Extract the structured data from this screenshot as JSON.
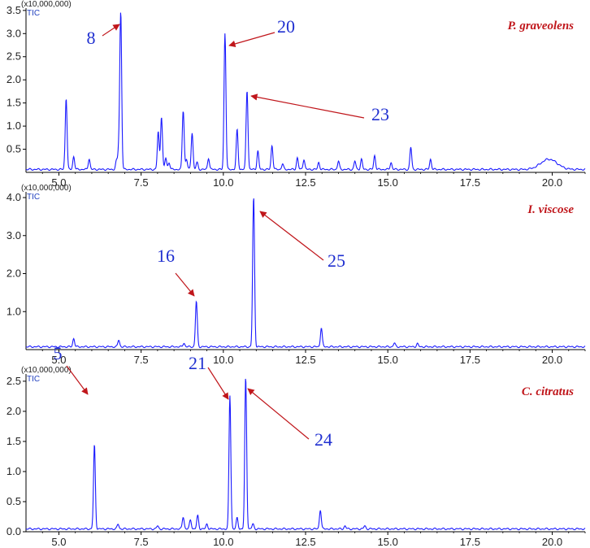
{
  "colors": {
    "trace": "#1a1aff",
    "arrow": "#c0161b",
    "peak_label": "#1f2fd0",
    "title": "#c0161b",
    "axis": "#000000"
  },
  "chart_data": [
    {
      "type": "line",
      "title": "P. graveolens",
      "scale_label": "(x10,000,000)",
      "signal_label": "TIC",
      "xlim": [
        4.0,
        21.0
      ],
      "ylim": [
        0,
        3.55
      ],
      "x_ticks": [
        "5.0",
        "7.5",
        "10.0",
        "12.5",
        "15.0",
        "17.5",
        "20.0"
      ],
      "y_ticks": [
        "0.5",
        "1.0",
        "1.5",
        "2.0",
        "2.5",
        "3.0",
        "3.5"
      ],
      "peaks": [
        {
          "rt": 5.22,
          "h": 1.55
        },
        {
          "rt": 5.45,
          "h": 0.28
        },
        {
          "rt": 5.92,
          "h": 0.23
        },
        {
          "rt": 6.75,
          "h": 0.18
        },
        {
          "rt": 6.82,
          "h": 0.42
        },
        {
          "rt": 6.88,
          "h": 3.38
        },
        {
          "rt": 8.02,
          "h": 0.82
        },
        {
          "rt": 8.12,
          "h": 1.15
        },
        {
          "rt": 8.25,
          "h": 0.25
        },
        {
          "rt": 8.35,
          "h": 0.15
        },
        {
          "rt": 8.78,
          "h": 1.28
        },
        {
          "rt": 8.88,
          "h": 0.22
        },
        {
          "rt": 9.05,
          "h": 0.8
        },
        {
          "rt": 9.2,
          "h": 0.15
        },
        {
          "rt": 9.55,
          "h": 0.25
        },
        {
          "rt": 10.05,
          "h": 2.95
        },
        {
          "rt": 10.42,
          "h": 0.86
        },
        {
          "rt": 10.72,
          "h": 1.72
        },
        {
          "rt": 11.05,
          "h": 0.4
        },
        {
          "rt": 11.48,
          "h": 0.52
        },
        {
          "rt": 11.8,
          "h": 0.12
        },
        {
          "rt": 12.25,
          "h": 0.25
        },
        {
          "rt": 12.45,
          "h": 0.22
        },
        {
          "rt": 12.9,
          "h": 0.15
        },
        {
          "rt": 13.5,
          "h": 0.18
        },
        {
          "rt": 14.0,
          "h": 0.18
        },
        {
          "rt": 14.2,
          "h": 0.22
        },
        {
          "rt": 14.6,
          "h": 0.3
        },
        {
          "rt": 15.1,
          "h": 0.15
        },
        {
          "rt": 15.7,
          "h": 0.48
        },
        {
          "rt": 16.3,
          "h": 0.22
        }
      ],
      "annotations": [
        {
          "label": "8",
          "peak_index": 5
        },
        {
          "label": "20",
          "peak_index": 15
        },
        {
          "label": "23",
          "peak_index": 17
        }
      ]
    },
    {
      "type": "line",
      "title": "I. viscose",
      "scale_label": "(x10,000,000)",
      "signal_label": "TIC",
      "xlim": [
        4.0,
        21.0
      ],
      "ylim": [
        0,
        4.15
      ],
      "x_ticks": [
        "5.0",
        "7.5",
        "10.0",
        "12.5",
        "15.0",
        "17.5",
        "20.0"
      ],
      "y_ticks": [
        "1.0",
        "2.0",
        "3.0",
        "4.0"
      ],
      "peaks": [
        {
          "rt": 5.45,
          "h": 0.22
        },
        {
          "rt": 6.82,
          "h": 0.18
        },
        {
          "rt": 8.8,
          "h": 0.1
        },
        {
          "rt": 9.18,
          "h": 1.2
        },
        {
          "rt": 10.92,
          "h": 3.95
        },
        {
          "rt": 12.98,
          "h": 0.5
        },
        {
          "rt": 15.2,
          "h": 0.1
        },
        {
          "rt": 15.9,
          "h": 0.08
        }
      ],
      "annotations": [
        {
          "label": "16",
          "peak_index": 3
        },
        {
          "label": "25",
          "peak_index": 4
        }
      ]
    },
    {
      "type": "line",
      "title": "C. citratus",
      "scale_label": "(x10,000,000)",
      "signal_label": "TIC",
      "xlim": [
        4.0,
        21.0
      ],
      "ylim": [
        0,
        2.62
      ],
      "x_ticks": [
        "5.0",
        "7.5",
        "10.0",
        "12.5",
        "15.0",
        "17.5",
        "20.0"
      ],
      "y_ticks": [
        "0.0",
        "0.5",
        "1.0",
        "1.5",
        "2.0",
        "2.5"
      ],
      "peaks": [
        {
          "rt": 6.08,
          "h": 1.4
        },
        {
          "rt": 6.8,
          "h": 0.08
        },
        {
          "rt": 8.0,
          "h": 0.05
        },
        {
          "rt": 8.78,
          "h": 0.2
        },
        {
          "rt": 9.0,
          "h": 0.15
        },
        {
          "rt": 9.22,
          "h": 0.22
        },
        {
          "rt": 9.5,
          "h": 0.08
        },
        {
          "rt": 10.2,
          "h": 2.22
        },
        {
          "rt": 10.42,
          "h": 0.18
        },
        {
          "rt": 10.68,
          "h": 2.52
        },
        {
          "rt": 10.9,
          "h": 0.08
        },
        {
          "rt": 12.95,
          "h": 0.32
        },
        {
          "rt": 13.7,
          "h": 0.05
        },
        {
          "rt": 14.3,
          "h": 0.05
        }
      ],
      "annotations": [
        {
          "label": "5",
          "peak_index": 0
        },
        {
          "label": "21",
          "peak_index": 7
        },
        {
          "label": "24",
          "peak_index": 9
        }
      ]
    }
  ]
}
